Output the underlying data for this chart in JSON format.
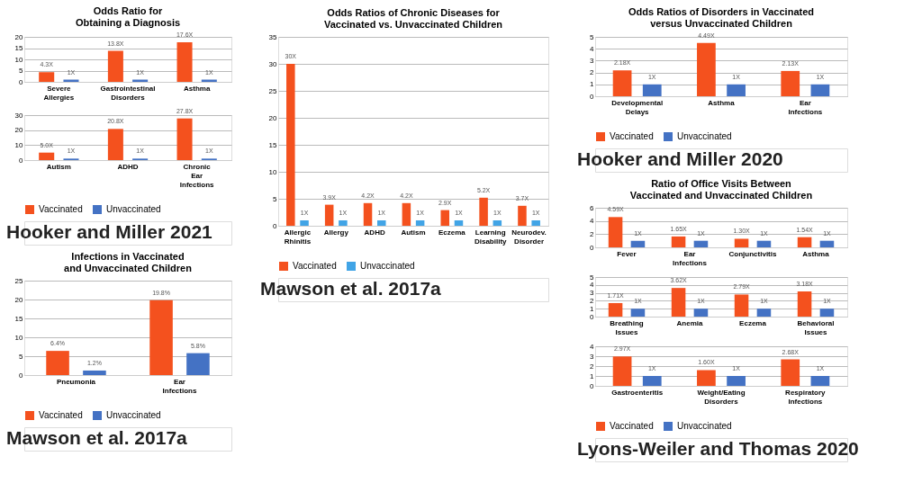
{
  "chart_data": [
    {
      "type": "bar",
      "title": "Odds Ratio for Obtaining a Diagnosis",
      "categories": [
        "Severe Allergies",
        "Gastrointestinal Disorders",
        "Asthma"
      ],
      "ylim": [
        0,
        20
      ],
      "yticks": [
        0,
        5,
        10,
        15,
        20
      ],
      "grid": "y",
      "series": [
        {
          "color": "#f4511e",
          "values": [
            4.3,
            13.8,
            17.6
          ],
          "value_labels": [
            "4.3X",
            "13.8X",
            "17.6X"
          ]
        },
        {
          "color": "#4472c4",
          "values": [
            1,
            1,
            1
          ],
          "value_labels": [
            "1X",
            "1X",
            "1X"
          ]
        }
      ]
    },
    {
      "type": "bar",
      "categories": [
        "Autism",
        "ADHD",
        "Chronic Ear Infections"
      ],
      "ylim": [
        0,
        30
      ],
      "yticks": [
        0,
        10,
        20,
        30
      ],
      "grid": "y",
      "legend": "bottom",
      "annotations": [
        "Hooker and Miller 2021"
      ],
      "series": [
        {
          "name": "Vaccinated",
          "color": "#f4511e",
          "values": [
            5.0,
            20.8,
            27.8
          ],
          "value_labels": [
            "5.0X",
            "20.8X",
            "27.8X"
          ]
        },
        {
          "name": "Unvaccinated",
          "color": "#4472c4",
          "values": [
            1,
            1,
            1
          ],
          "value_labels": [
            "1X",
            "1X",
            "1X"
          ]
        }
      ]
    },
    {
      "type": "bar",
      "title": "Odds Ratios of Chronic Diseases for Vaccinated vs. Unvaccinated Children",
      "categories": [
        "Allergic Rhinitis",
        "Allergy",
        "ADHD",
        "Autism",
        "Eczema",
        "Learning Disability",
        "Neurodev. Disorder"
      ],
      "ylim": [
        0,
        35
      ],
      "yticks": [
        0,
        5,
        10,
        15,
        20,
        25,
        30,
        35
      ],
      "grid": "y",
      "legend": "bottom",
      "annotations": [
        "Mawson et al. 2017a"
      ],
      "series": [
        {
          "name": "Vaccinated",
          "color": "#f4511e",
          "values": [
            30,
            3.9,
            4.2,
            4.2,
            2.9,
            5.2,
            3.7
          ],
          "value_labels": [
            "30X",
            "3.9X",
            "4.2X",
            "4.2X",
            "2.9X",
            "5.2X",
            "3.7X"
          ]
        },
        {
          "name": "Unvaccinated",
          "color": "#41a4e6",
          "values": [
            1,
            1,
            1,
            1,
            1,
            1,
            1
          ],
          "value_labels": [
            "1X",
            "1X",
            "1X",
            "1X",
            "1X",
            "1X",
            "1X"
          ]
        }
      ]
    },
    {
      "type": "bar",
      "title": "Odds Ratios of Disorders in Vaccinated versus Unvaccinated Children",
      "categories": [
        "Developmental Delays",
        "Asthma",
        "Ear Infections"
      ],
      "ylim": [
        0,
        5
      ],
      "yticks": [
        0,
        1,
        2,
        3,
        4,
        5
      ],
      "grid": "y",
      "legend": "bottom",
      "annotations": [
        "Hooker and Miller 2020"
      ],
      "series": [
        {
          "name": "Vaccinated",
          "color": "#f4511e",
          "values": [
            2.18,
            4.49,
            2.13
          ],
          "value_labels": [
            "2.18X",
            "4.49X",
            "2.13X"
          ]
        },
        {
          "name": "Unvaccinated",
          "color": "#4472c4",
          "values": [
            1,
            1,
            1
          ],
          "value_labels": [
            "1X",
            "1X",
            "1X"
          ]
        }
      ]
    },
    {
      "type": "bar",
      "title": "Infections in Vaccinated and Unvaccinated Children",
      "categories": [
        "Pneumonia",
        "Ear Infections"
      ],
      "ylim": [
        0,
        25
      ],
      "yticks": [
        0,
        5,
        10,
        15,
        20,
        25
      ],
      "grid": "y",
      "legend": "bottom",
      "annotations": [
        "Mawson et al. 2017a"
      ],
      "series": [
        {
          "name": "Vaccinated",
          "color": "#f4511e",
          "values": [
            6.4,
            19.8
          ],
          "value_labels": [
            "6.4%",
            "19.8%"
          ]
        },
        {
          "name": "Unvaccinated",
          "color": "#4472c4",
          "values": [
            1.2,
            5.8
          ],
          "value_labels": [
            "1.2%",
            "5.8%"
          ]
        }
      ]
    },
    {
      "type": "bar",
      "title": "Ratio of Office Visits Between Vaccinated and Unvaccinated Children",
      "categories": [
        "Fever",
        "Ear Infections",
        "Conjunctivitis",
        "Asthma"
      ],
      "ylim": [
        0,
        6
      ],
      "yticks": [
        0,
        2,
        4,
        6
      ],
      "grid": "y",
      "series": [
        {
          "color": "#f4511e",
          "values": [
            4.59,
            1.65,
            1.3,
            1.54
          ],
          "value_labels": [
            "4.59X",
            "1.65X",
            "1.30X",
            "1.54X"
          ]
        },
        {
          "color": "#4472c4",
          "values": [
            1,
            1,
            1,
            1
          ],
          "value_labels": [
            "1X",
            "1X",
            "1X",
            "1X"
          ]
        }
      ]
    },
    {
      "type": "bar",
      "categories": [
        "Breathing Issues",
        "Anemia",
        "Eczema",
        "Behavioral Issues"
      ],
      "ylim": [
        0,
        5
      ],
      "yticks": [
        0,
        1,
        2,
        3,
        4,
        5
      ],
      "grid": "y",
      "series": [
        {
          "color": "#f4511e",
          "values": [
            1.71,
            3.62,
            2.79,
            3.18
          ],
          "value_labels": [
            "1.71X",
            "3.62X",
            "2.79X",
            "3.18X"
          ]
        },
        {
          "color": "#4472c4",
          "values": [
            1,
            1,
            1,
            1
          ],
          "value_labels": [
            "1X",
            "1X",
            "1X",
            "1X"
          ]
        }
      ]
    },
    {
      "type": "bar",
      "categories": [
        "Gastroenteritis",
        "Weight/Eating Disorders",
        "Respiratory Infections"
      ],
      "ylim": [
        0,
        4
      ],
      "yticks": [
        0,
        1,
        2,
        3,
        4
      ],
      "grid": "y",
      "legend": "bottom",
      "annotations": [
        "Lyons-Weiler and Thomas 2020"
      ],
      "series": [
        {
          "name": "Vaccinated",
          "color": "#f4511e",
          "values": [
            2.97,
            1.6,
            2.68
          ],
          "value_labels": [
            "2.97X",
            "1.60X",
            "2.68X"
          ]
        },
        {
          "name": "Unvaccinated",
          "color": "#4472c4",
          "values": [
            1,
            1,
            1
          ],
          "value_labels": [
            "1X",
            "1X",
            "1X"
          ]
        }
      ]
    }
  ]
}
